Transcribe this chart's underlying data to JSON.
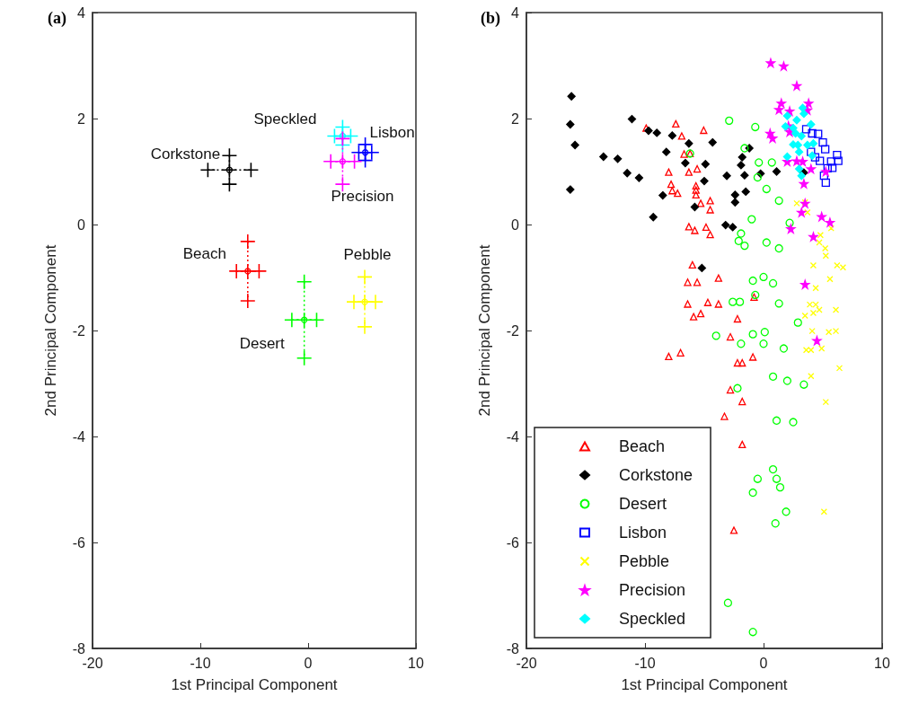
{
  "chart_data": [
    {
      "type": "scatter",
      "title": "(a)",
      "xlabel": "1st Principal Component",
      "ylabel": "2nd Principal Component",
      "xlim": [
        -20,
        10
      ],
      "xticks": [
        -20,
        -10,
        0,
        10
      ],
      "ylim": [
        -8,
        4
      ],
      "yticks": [
        -8,
        -6,
        -4,
        -2,
        0,
        2,
        4
      ],
      "grid": false,
      "legend": false,
      "marker": "cross",
      "series": [
        {
          "name": "Corkstone",
          "color": "#000000",
          "x": [
            -7.3
          ],
          "values": [
            1.03
          ],
          "xerrors": [
            2.0
          ],
          "errors": [
            0.27
          ]
        },
        {
          "name": "Speckled",
          "color": "#00ffff",
          "x": [
            3.2
          ],
          "values": [
            1.67
          ],
          "xerrors": [
            0.75
          ],
          "errors": [
            0.17
          ]
        },
        {
          "name": "Lisbon",
          "color": "#0000ff",
          "x": [
            5.3
          ],
          "values": [
            1.36
          ],
          "xerrors": [
            0.6
          ],
          "errors": [
            0.15
          ]
        },
        {
          "name": "Precision",
          "color": "#ff00ff",
          "x": [
            3.2
          ],
          "values": [
            1.19
          ],
          "xerrors": [
            1.1
          ],
          "errors": [
            0.43
          ]
        },
        {
          "name": "Beach",
          "color": "#ff0000",
          "x": [
            -5.6
          ],
          "values": [
            -0.88
          ],
          "xerrors": [
            1.05
          ],
          "errors": [
            0.56
          ]
        },
        {
          "name": "Desert",
          "color": "#00ff00",
          "x": [
            -0.36
          ],
          "values": [
            -1.8
          ],
          "xerrors": [
            1.15
          ],
          "errors": [
            0.72
          ]
        },
        {
          "name": "Pebble",
          "color": "#ffff00",
          "x": [
            5.25
          ],
          "values": [
            -1.46
          ],
          "xerrors": [
            1.0
          ],
          "errors": [
            0.47
          ]
        }
      ]
    },
    {
      "type": "scatter",
      "title": "(b)",
      "xlabel": "1st Principal Component",
      "ylabel": "2nd Principal Component",
      "xlim": [
        -20,
        10
      ],
      "xticks": [
        -20,
        -10,
        0,
        10
      ],
      "ylim": [
        -8,
        4
      ],
      "yticks": [
        -8,
        -6,
        -4,
        -2,
        0,
        2,
        4
      ],
      "grid": false,
      "legend": "bottom left",
      "series": [
        {
          "name": "Beach",
          "color": "#ff0000",
          "marker": "triangle",
          "x": [
            -9.9,
            -7.4,
            -6.9,
            -5.05,
            -6.7,
            -6.2,
            -8.0,
            -6.3,
            -5.6,
            -7.8,
            -7.7,
            -7.25,
            -5.7,
            -5.7,
            -5.7,
            -5.3,
            -6.3,
            -5.8,
            -4.5,
            -4.5,
            -4.85,
            -4.5,
            -6.0,
            -6.4,
            -5.6,
            -3.8,
            -6.4,
            -4.7,
            -3.8,
            -5.9,
            -5.3,
            -2.2,
            -8.0,
            -7.0,
            -2.8,
            -2.2,
            -1.8,
            -0.9,
            -0.8,
            -2.8,
            -1.8,
            -3.3,
            -1.8,
            -2.5
          ],
          "values": [
            1.82,
            1.9,
            1.67,
            1.78,
            1.33,
            1.34,
            0.99,
            0.99,
            1.05,
            0.76,
            0.64,
            0.59,
            0.73,
            0.65,
            0.56,
            0.4,
            -0.04,
            -0.11,
            0.45,
            0.28,
            -0.05,
            -0.19,
            -0.76,
            -1.09,
            -1.09,
            -1.01,
            -1.5,
            -1.47,
            -1.5,
            -1.74,
            -1.68,
            -1.78,
            -2.49,
            -2.42,
            -2.12,
            -2.61,
            -2.61,
            -2.5,
            -1.37,
            -3.12,
            -3.34,
            -3.62,
            -4.15,
            -5.77
          ]
        },
        {
          "name": "Corkstone",
          "color": "#000000",
          "marker": "diamond",
          "x": [
            -16.2,
            -16.3,
            -15.9,
            -16.3,
            -11.1,
            -13.5,
            -12.3,
            -11.5,
            -10.5,
            -9.7,
            -9.0,
            -8.2,
            -7.7,
            -6.3,
            -6.6,
            -8.5,
            -9.3,
            -5.8,
            -5.0,
            -4.9,
            -4.3,
            -1.2,
            -1.8,
            -1.9,
            -3.1,
            -1.6,
            -0.25,
            1.1,
            -2.4,
            -2.4,
            -1.5,
            -3.2,
            -2.6,
            3.4,
            -5.2
          ],
          "values": [
            2.42,
            1.89,
            1.5,
            0.66,
            1.99,
            1.28,
            1.24,
            0.97,
            0.88,
            1.77,
            1.73,
            1.37,
            1.68,
            1.53,
            1.16,
            0.55,
            0.14,
            0.33,
            0.82,
            1.14,
            1.55,
            1.44,
            1.27,
            1.12,
            0.92,
            0.93,
            0.96,
            1.0,
            0.56,
            0.42,
            0.62,
            -0.01,
            -0.05,
            0.98,
            -0.82
          ]
        },
        {
          "name": "Desert",
          "color": "#00ff00",
          "marker": "circle",
          "x": [
            -2.9,
            -0.7,
            -1.6,
            -0.4,
            0.7,
            -0.5,
            0.25,
            1.3,
            -1.0,
            2.2,
            -1.9,
            -2.1,
            -1.6,
            0.25,
            1.3,
            -0.9,
            0.0,
            0.8,
            -0.7,
            -2.6,
            -2.0,
            1.3,
            2.9,
            -4.0,
            -1.9,
            -0.9,
            0.1,
            0.0,
            1.7,
            0.8,
            2.0,
            3.4,
            -2.2,
            1.1,
            2.5,
            0.8,
            1.1,
            1.4,
            -0.5,
            -0.9,
            1.9,
            1.0,
            -3.0,
            -0.9,
            -6.2
          ],
          "values": [
            1.96,
            1.84,
            1.44,
            1.17,
            1.17,
            0.89,
            0.67,
            0.45,
            0.1,
            0.03,
            -0.17,
            -0.31,
            -0.4,
            -0.34,
            -0.45,
            -1.06,
            -0.99,
            -1.11,
            -1.33,
            -1.46,
            -1.46,
            -1.49,
            -1.85,
            -2.1,
            -2.25,
            -2.07,
            -2.03,
            -2.25,
            -2.34,
            -2.87,
            -2.95,
            -3.02,
            -3.09,
            -3.7,
            -3.73,
            -4.62,
            -4.8,
            -4.96,
            -4.8,
            -5.06,
            -5.42,
            -5.64,
            -7.14,
            -7.69,
            1.34
          ]
        },
        {
          "name": "Lisbon",
          "color": "#0000ff",
          "marker": "square",
          "x": [
            3.6,
            4.1,
            4.6,
            5.0,
            5.2,
            4.0,
            4.75,
            5.7,
            6.2,
            6.3,
            5.4,
            5.1,
            5.25,
            5.8,
            4.35
          ],
          "values": [
            1.8,
            1.72,
            1.71,
            1.55,
            1.42,
            1.37,
            1.2,
            1.19,
            1.31,
            1.2,
            1.06,
            0.92,
            0.79,
            1.07,
            1.27
          ]
        },
        {
          "name": "Pebble",
          "color": "#ffff00",
          "marker": "cross",
          "x": [
            2.8,
            3.5,
            3.7,
            5.7,
            4.8,
            4.7,
            5.2,
            5.25,
            4.2,
            6.2,
            6.7,
            5.6,
            4.4,
            3.9,
            4.4,
            4.7,
            4.2,
            3.5,
            6.1,
            4.1,
            5.5,
            6.1,
            3.6,
            4.0,
            4.9,
            6.4,
            4.0,
            5.25,
            5.1
          ],
          "values": [
            0.4,
            0.42,
            0.23,
            -0.07,
            -0.2,
            -0.34,
            -0.45,
            -0.59,
            -0.77,
            -0.77,
            -0.81,
            -1.03,
            -1.2,
            -1.51,
            -1.51,
            -1.61,
            -1.67,
            -1.72,
            -1.61,
            -2.01,
            -2.03,
            -2.01,
            -2.37,
            -2.37,
            -2.34,
            -2.71,
            -2.86,
            -3.35,
            -5.42
          ]
        },
        {
          "name": "Precision",
          "color": "#ff00ff",
          "marker": "star",
          "x": [
            0.6,
            1.7,
            2.8,
            1.5,
            1.3,
            3.8,
            3.7,
            2.2,
            0.55,
            0.76,
            2.1,
            2.2,
            2.0,
            2.8,
            3.3,
            4.0,
            5.25,
            3.4,
            3.5,
            3.2,
            4.9,
            5.6,
            2.3,
            4.2,
            3.5,
            4.5
          ],
          "values": [
            3.05,
            2.99,
            2.62,
            2.29,
            2.17,
            2.29,
            2.16,
            2.14,
            1.72,
            1.63,
            1.86,
            1.75,
            1.19,
            1.2,
            1.19,
            1.05,
            1.0,
            0.77,
            0.4,
            0.23,
            0.15,
            0.04,
            -0.08,
            -0.23,
            -1.13,
            -2.19
          ]
        },
        {
          "name": "Speckled",
          "color": "#00ffff",
          "marker": "diamond",
          "x": [
            3.3,
            3.4,
            2.0,
            2.8,
            1.85,
            2.5,
            2.7,
            3.2,
            4.0,
            2.5,
            2.9,
            3.7,
            2.0,
            3.0,
            4.1,
            3.0,
            3.2,
            4.2
          ],
          "values": [
            2.2,
            2.09,
            2.05,
            1.97,
            1.85,
            1.82,
            1.72,
            1.67,
            1.89,
            1.51,
            1.5,
            1.5,
            1.28,
            1.37,
            1.3,
            1.05,
            0.92,
            1.53
          ]
        }
      ]
    }
  ]
}
